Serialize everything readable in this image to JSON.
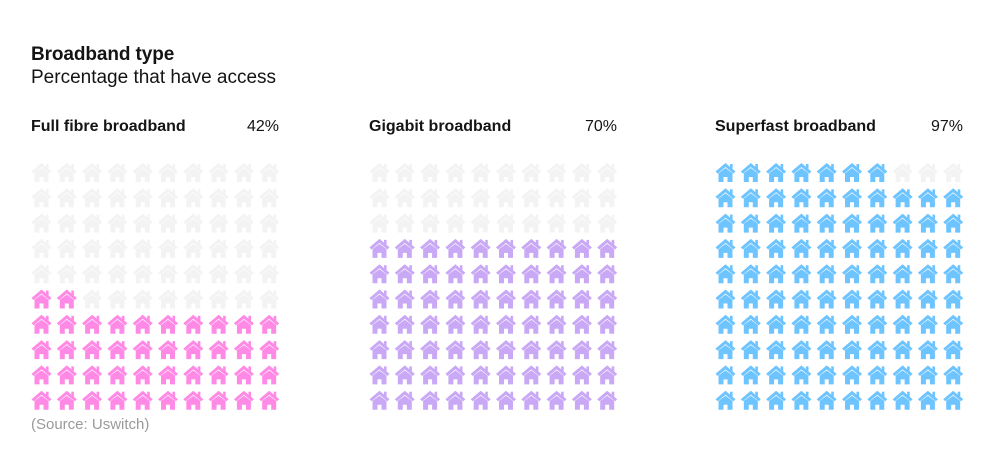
{
  "header": {
    "title": "Broadband type",
    "subtitle": "Percentage that have access"
  },
  "source": "(Source: Uswitch)",
  "chart_data": {
    "type": "waffle",
    "title": "Broadband type",
    "subtitle": "Percentage that have access",
    "grid": {
      "rows": 10,
      "cols": 10
    },
    "icon": "house-icon",
    "empty_color": "#f3f3f3",
    "series": [
      {
        "name": "Full fibre broadband",
        "value": 42,
        "value_label": "42%",
        "color": "#ff8ae6"
      },
      {
        "name": "Gigabit broadband",
        "value": 70,
        "value_label": "70%",
        "color": "#c9a8f5"
      },
      {
        "name": "Superfast broadband",
        "value": 97,
        "value_label": "97%",
        "color": "#6ec4ff"
      }
    ]
  }
}
